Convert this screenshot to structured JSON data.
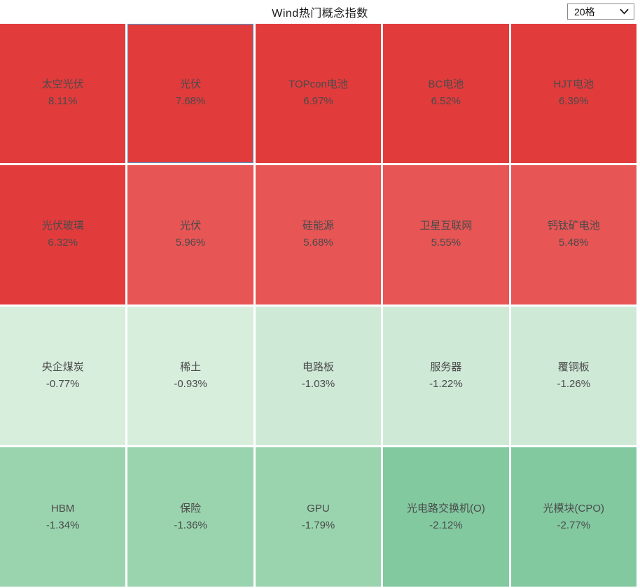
{
  "header": {
    "title": "Wind热门概念指数",
    "grid_selector": {
      "value": "20格"
    }
  },
  "colors": {
    "selection_border": "#3fa0da",
    "tile_text": "#4a4a4a",
    "strong_red": "#e23b3c",
    "light_red": "#e75555",
    "pale_green": "#d4ecdb",
    "medium_green": "#9ad4ae",
    "dark_green": "#82c9a0"
  },
  "chart_data": {
    "type": "heatmap",
    "title": "Wind热门概念指数",
    "legend_position": "none",
    "grid": "5x4",
    "tiles": [
      {
        "name": "太空光伏",
        "change": "8.11%",
        "value": 8.11,
        "color": "#e23b3c",
        "selected": false
      },
      {
        "name": "光伏",
        "change": "7.68%",
        "value": 7.68,
        "color": "#e23b3c",
        "selected": true
      },
      {
        "name": "TOPcon电池",
        "change": "6.97%",
        "value": 6.97,
        "color": "#e23b3c",
        "selected": false
      },
      {
        "name": "BC电池",
        "change": "6.52%",
        "value": 6.52,
        "color": "#e23b3c",
        "selected": false
      },
      {
        "name": "HJT电池",
        "change": "6.39%",
        "value": 6.39,
        "color": "#e23b3c",
        "selected": false
      },
      {
        "name": "光伏玻璃",
        "change": "6.32%",
        "value": 6.32,
        "color": "#e23b3c",
        "selected": false
      },
      {
        "name": "光伏",
        "change": "5.96%",
        "value": 5.96,
        "color": "#e75555",
        "selected": false
      },
      {
        "name": "硅能源",
        "change": "5.68%",
        "value": 5.68,
        "color": "#e75555",
        "selected": false
      },
      {
        "name": "卫星互联网",
        "change": "5.55%",
        "value": 5.55,
        "color": "#e75555",
        "selected": false
      },
      {
        "name": "钙钛矿电池",
        "change": "5.48%",
        "value": 5.48,
        "color": "#e75555",
        "selected": false
      },
      {
        "name": "央企煤炭",
        "change": "-0.77%",
        "value": -0.77,
        "color": "#d8eedd",
        "selected": false
      },
      {
        "name": "稀土",
        "change": "-0.93%",
        "value": -0.93,
        "color": "#d8eedd",
        "selected": false
      },
      {
        "name": "电路板",
        "change": "-1.03%",
        "value": -1.03,
        "color": "#cfe9d7",
        "selected": false
      },
      {
        "name": "服务器",
        "change": "-1.22%",
        "value": -1.22,
        "color": "#cfe9d7",
        "selected": false
      },
      {
        "name": "覆铜板",
        "change": "-1.26%",
        "value": -1.26,
        "color": "#cfe9d7",
        "selected": false
      },
      {
        "name": "HBM",
        "change": "-1.34%",
        "value": -1.34,
        "color": "#9ad4ae",
        "selected": false
      },
      {
        "name": "保险",
        "change": "-1.36%",
        "value": -1.36,
        "color": "#9ad4ae",
        "selected": false
      },
      {
        "name": "GPU",
        "change": "-1.79%",
        "value": -1.79,
        "color": "#9ad4ae",
        "selected": false
      },
      {
        "name": "光电路交换机(O)",
        "change": "-2.12%",
        "value": -2.12,
        "color": "#82c9a0",
        "selected": false
      },
      {
        "name": "光模块(CPO)",
        "change": "-2.77%",
        "value": -2.77,
        "color": "#82c9a0",
        "selected": false
      }
    ]
  }
}
